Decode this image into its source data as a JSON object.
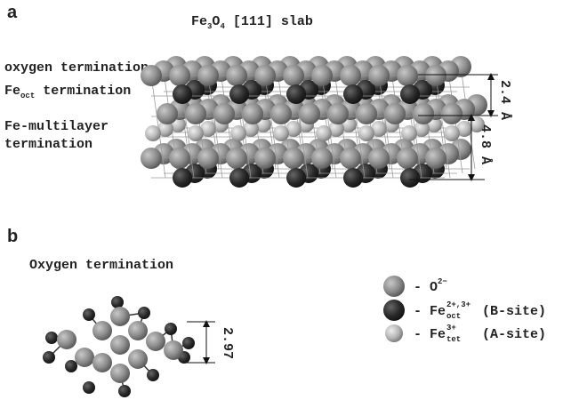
{
  "panel_a": {
    "label": "a",
    "title": {
      "el1": "Fe",
      "sub1": "3",
      "el2": "O",
      "sub2": "4",
      "rest": " [111] slab"
    },
    "terminations": [
      {
        "text": "oxygen termination"
      },
      {
        "text": "Fe",
        "sub": "oct",
        "rest": " termination"
      },
      {
        "line1": "Fe-multilayer",
        "line2": "termination"
      }
    ],
    "dimensions": [
      "2.4 Å",
      "4.8 Å"
    ]
  },
  "panel_b": {
    "label": "b",
    "title": "Oxygen termination",
    "dimension": "2.97"
  },
  "legend": [
    {
      "symbol": "- O",
      "sup": "2−"
    },
    {
      "symbol": "- Fe",
      "sub": "oct",
      "sup": "2+,3+",
      "site": "(B-site)"
    },
    {
      "symbol": "- Fe",
      "sub": "tet",
      "sup": "3+",
      "site": "(A-site)"
    }
  ]
}
